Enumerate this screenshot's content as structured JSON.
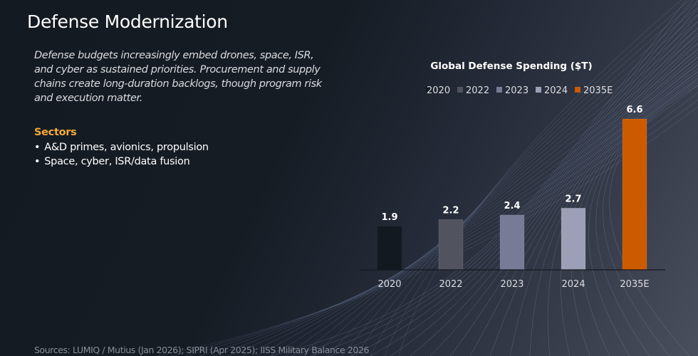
{
  "slide": {
    "title": "Defense Modernization",
    "intro": "Defense budgets increasingly embed drones, space, ISR, and cyber as sustained priorities. Procurement and supply chains create long-duration backlogs, though program risk and execution matter.",
    "sectors_heading": "Sectors",
    "sectors": [
      "A&D primes, avionics, propulsion",
      "Space, cyber, ISR/data fusion"
    ],
    "sources": "Sources: LUMIQ / Mutius (Jan 2026); SIPRI (Apr 2025); IISS Military Balance 2026"
  },
  "colors": {
    "accent": "#f5a93a",
    "bars": [
      "#131920",
      "#51535f",
      "#787b96",
      "#9c9fb5",
      "#cc5a00"
    ]
  },
  "chart_data": {
    "type": "bar",
    "title": "Global Defense Spending ($T)",
    "categories": [
      "2020",
      "2022",
      "2023",
      "2024",
      "2035E"
    ],
    "values": [
      1.9,
      2.2,
      2.4,
      2.7,
      6.6
    ],
    "data_labels": [
      "1.9",
      "2.2",
      "2.4",
      "2.7",
      "6.6"
    ],
    "legend": [
      "2020",
      "2022",
      "2023",
      "2024",
      "2035E"
    ],
    "legend_position": "top",
    "xlabel": "",
    "ylabel": "",
    "ylim": [
      0,
      6.6
    ],
    "grid": false
  }
}
